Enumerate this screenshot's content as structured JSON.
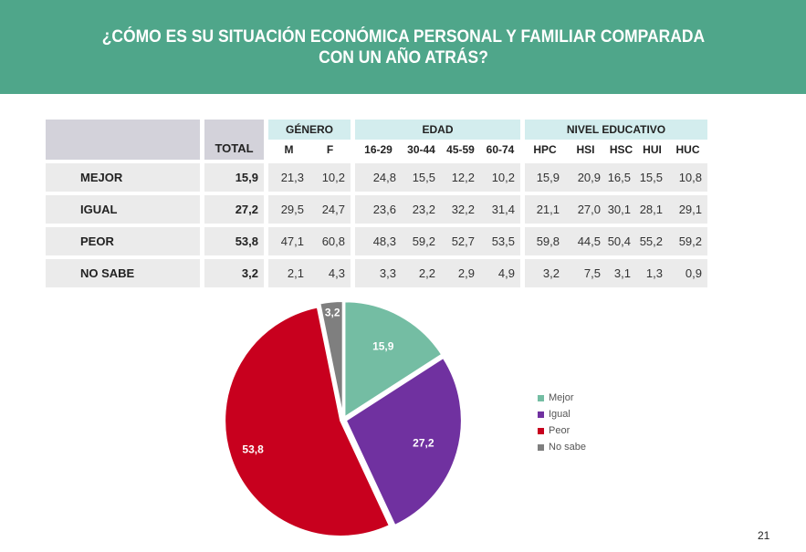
{
  "title_line1": "¿CÓMO ES SU SITUACIÓN ECONÓMICA PERSONAL Y FAMILIAR COMPARADA",
  "title_line2": "CON UN AÑO ATRÁS?",
  "page_number": "21",
  "table": {
    "total_header": "TOTAL",
    "groups": {
      "genero": "GÉNERO",
      "edad": "EDAD",
      "nivel": "NIVEL EDUCATIVO"
    },
    "sub_headers": [
      "M",
      "F",
      "16-29",
      "30-44",
      "45-59",
      "60-74",
      "HPC",
      "HSI",
      "HSC",
      "HUI",
      "HUC"
    ],
    "rows": [
      {
        "label": "MEJOR",
        "total": "15,9",
        "values": [
          "21,3",
          "10,2",
          "24,8",
          "15,5",
          "12,2",
          "10,2",
          "15,9",
          "20,9",
          "16,5",
          "15,5",
          "10,8"
        ]
      },
      {
        "label": "IGUAL",
        "total": "27,2",
        "values": [
          "29,5",
          "24,7",
          "23,6",
          "23,2",
          "32,2",
          "31,4",
          "21,1",
          "27,0",
          "30,1",
          "28,1",
          "29,1"
        ]
      },
      {
        "label": "PEOR",
        "total": "53,8",
        "values": [
          "47,1",
          "60,8",
          "48,3",
          "59,2",
          "52,7",
          "53,5",
          "59,8",
          "44,5",
          "50,4",
          "55,2",
          "59,2"
        ]
      },
      {
        "label": "NO SABE",
        "total": "3,2",
        "values": [
          "2,1",
          "4,3",
          "3,3",
          "2,2",
          "2,9",
          "4,9",
          "3,2",
          "7,5",
          "3,1",
          "1,3",
          "0,9"
        ]
      }
    ]
  },
  "chart_data": {
    "type": "pie",
    "categories": [
      "Mejor",
      "Igual",
      "Peor",
      "No sabe"
    ],
    "values": [
      15.9,
      27.2,
      53.8,
      3.2
    ],
    "value_labels": [
      "15,9",
      "27,2",
      "53,8",
      "3,2"
    ],
    "colors": [
      "#74bda3",
      "#7031a0",
      "#c8001e",
      "#7f7f7f"
    ],
    "legend_position": "right"
  }
}
